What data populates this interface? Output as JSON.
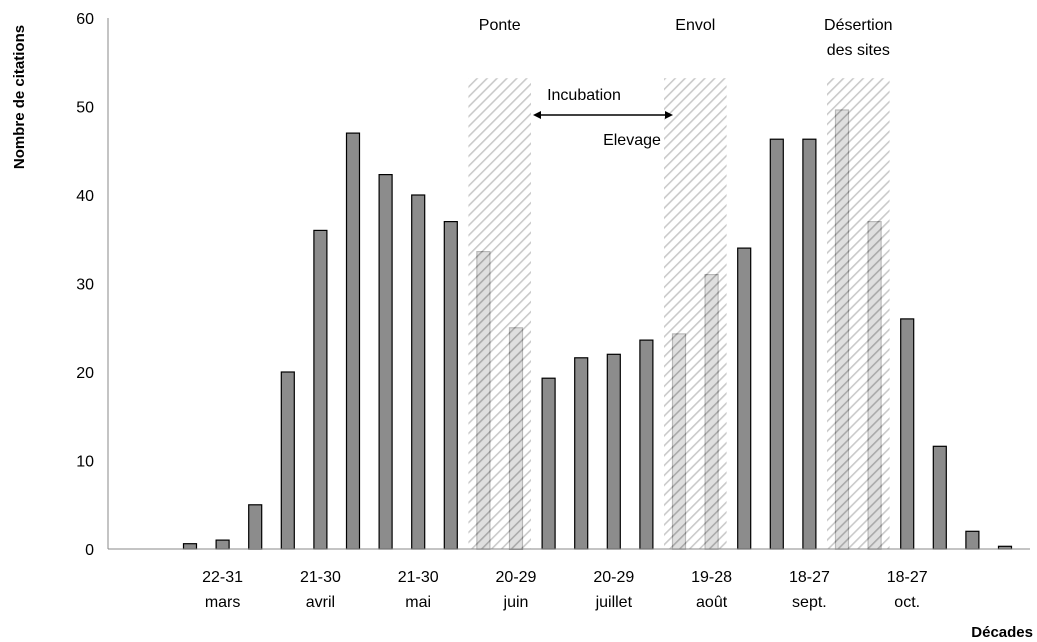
{
  "chart_data": {
    "type": "bar",
    "xlabel": "Décades",
    "ylabel": "Nombre de citations",
    "ylim": [
      0,
      60
    ],
    "yticks": [
      0,
      10,
      20,
      30,
      40,
      50,
      60
    ],
    "grid": false,
    "legend": "none",
    "bar_color": "#8c8c8c",
    "values": [
      0.6,
      1.0,
      5.0,
      20.0,
      36.0,
      47.0,
      42.3,
      40.0,
      37.0,
      33.6,
      25.0,
      19.3,
      21.6,
      22.0,
      23.6,
      24.3,
      31.0,
      34.0,
      46.3,
      46.3,
      49.6,
      37.0,
      26.0,
      11.6,
      2.0,
      0.3
    ],
    "tick_labels": [
      {
        "bar_index": 1,
        "line1": "22-31",
        "line2": "mars"
      },
      {
        "bar_index": 4,
        "line1": "21-30",
        "line2": "avril"
      },
      {
        "bar_index": 7,
        "line1": "21-30",
        "line2": "mai"
      },
      {
        "bar_index": 10,
        "line1": "20-29",
        "line2": "juin"
      },
      {
        "bar_index": 13,
        "line1": "20-29",
        "line2": "juillet"
      },
      {
        "bar_index": 16,
        "line1": "19-28",
        "line2": "août"
      },
      {
        "bar_index": 19,
        "line1": "18-27",
        "line2": "sept."
      },
      {
        "bar_index": 22,
        "line1": "18-27",
        "line2": "oct."
      }
    ],
    "hatched_periods": [
      {
        "label": "Ponte",
        "from_bar": 9,
        "to_bar": 10
      },
      {
        "label": "Envol",
        "from_bar": 15,
        "to_bar": 16
      },
      {
        "label": "Désertion des sites",
        "label_line1": "Désertion",
        "label_line2": "des sites",
        "from_bar": 20,
        "to_bar": 21
      }
    ],
    "annotations": {
      "incubation": "Incubation",
      "elevage": "Elevage"
    }
  }
}
